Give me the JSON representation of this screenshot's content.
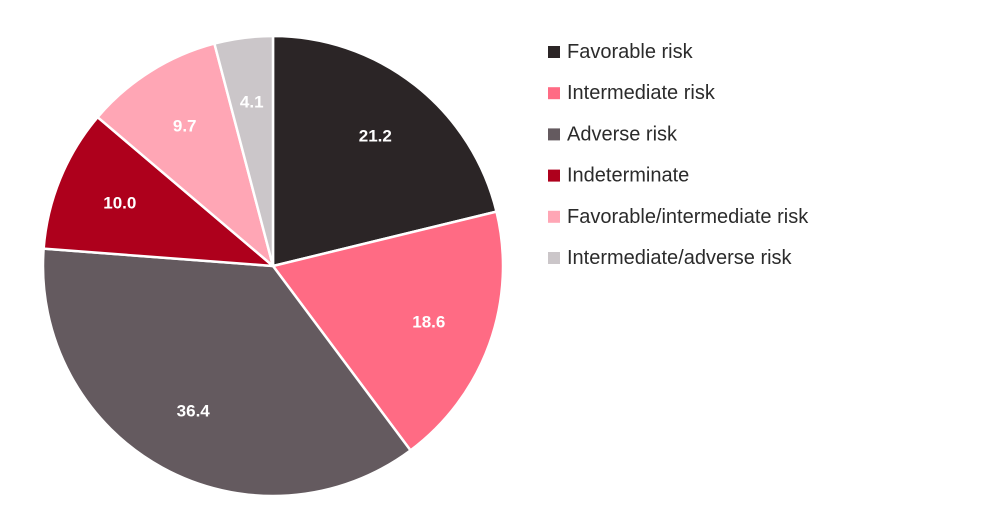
{
  "chart_data": {
    "type": "pie",
    "title": "",
    "start_angle_deg": 0,
    "direction": "clockwise",
    "legend_position": "right",
    "slices": [
      {
        "label": "Favorable risk",
        "value": 21.2,
        "value_label": "21.2",
        "color": "#2b2526"
      },
      {
        "label": "Intermediate risk",
        "value": 18.6,
        "value_label": "18.6",
        "color": "#ff6b84"
      },
      {
        "label": "Adverse risk",
        "value": 36.4,
        "value_label": "36.4",
        "color": "#645a5f"
      },
      {
        "label": "Indeterminate",
        "value": 10.0,
        "value_label": "10.0",
        "color": "#ae001c"
      },
      {
        "label": "Favorable/intermediate risk",
        "value": 9.7,
        "value_label": "9.7",
        "color": "#ffa6b5"
      },
      {
        "label": "Intermediate/adverse risk",
        "value": 4.1,
        "value_label": "4.1",
        "color": "#cbc6c9"
      }
    ]
  }
}
